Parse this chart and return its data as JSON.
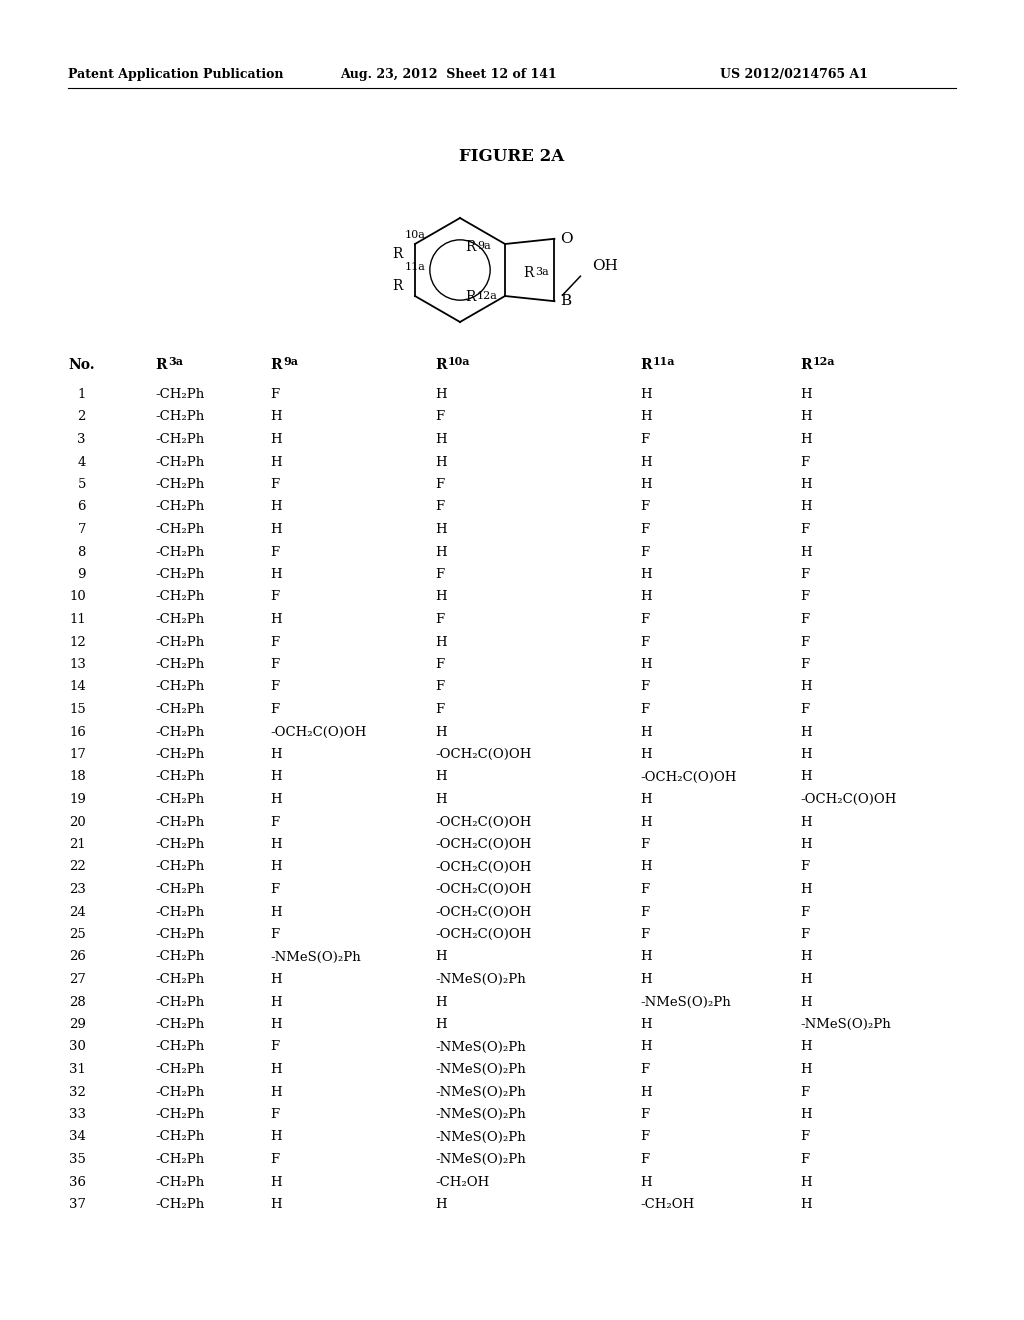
{
  "header_left": "Patent Application Publication",
  "header_mid": "Aug. 23, 2012  Sheet 12 of 141",
  "header_right": "US 2012/0214765 A1",
  "figure_title": "FIGURE 2A",
  "rows": [
    [
      "1",
      "-CH₂Ph",
      "F",
      "H",
      "H",
      "H"
    ],
    [
      "2",
      "-CH₂Ph",
      "H",
      "F",
      "H",
      "H"
    ],
    [
      "3",
      "-CH₂Ph",
      "H",
      "H",
      "F",
      "H"
    ],
    [
      "4",
      "-CH₂Ph",
      "H",
      "H",
      "H",
      "F"
    ],
    [
      "5",
      "-CH₂Ph",
      "F",
      "F",
      "H",
      "H"
    ],
    [
      "6",
      "-CH₂Ph",
      "H",
      "F",
      "F",
      "H"
    ],
    [
      "7",
      "-CH₂Ph",
      "H",
      "H",
      "F",
      "F"
    ],
    [
      "8",
      "-CH₂Ph",
      "F",
      "H",
      "F",
      "H"
    ],
    [
      "9",
      "-CH₂Ph",
      "H",
      "F",
      "H",
      "F"
    ],
    [
      "10",
      "-CH₂Ph",
      "F",
      "H",
      "H",
      "F"
    ],
    [
      "11",
      "-CH₂Ph",
      "H",
      "F",
      "F",
      "F"
    ],
    [
      "12",
      "-CH₂Ph",
      "F",
      "H",
      "F",
      "F"
    ],
    [
      "13",
      "-CH₂Ph",
      "F",
      "F",
      "H",
      "F"
    ],
    [
      "14",
      "-CH₂Ph",
      "F",
      "F",
      "F",
      "H"
    ],
    [
      "15",
      "-CH₂Ph",
      "F",
      "F",
      "F",
      "F"
    ],
    [
      "16",
      "-CH₂Ph",
      "-OCH₂C(O)OH",
      "H",
      "H",
      "H"
    ],
    [
      "17",
      "-CH₂Ph",
      "H",
      "-OCH₂C(O)OH",
      "H",
      "H"
    ],
    [
      "18",
      "-CH₂Ph",
      "H",
      "H",
      "-OCH₂C(O)OH",
      "H"
    ],
    [
      "19",
      "-CH₂Ph",
      "H",
      "H",
      "H",
      "-OCH₂C(O)OH"
    ],
    [
      "20",
      "-CH₂Ph",
      "F",
      "-OCH₂C(O)OH",
      "H",
      "H"
    ],
    [
      "21",
      "-CH₂Ph",
      "H",
      "-OCH₂C(O)OH",
      "F",
      "H"
    ],
    [
      "22",
      "-CH₂Ph",
      "H",
      "-OCH₂C(O)OH",
      "H",
      "F"
    ],
    [
      "23",
      "-CH₂Ph",
      "F",
      "-OCH₂C(O)OH",
      "F",
      "H"
    ],
    [
      "24",
      "-CH₂Ph",
      "H",
      "-OCH₂C(O)OH",
      "F",
      "F"
    ],
    [
      "25",
      "-CH₂Ph",
      "F",
      "-OCH₂C(O)OH",
      "F",
      "F"
    ],
    [
      "26",
      "-CH₂Ph",
      "-NMeS(O)₂Ph",
      "H",
      "H",
      "H"
    ],
    [
      "27",
      "-CH₂Ph",
      "H",
      "-NMeS(O)₂Ph",
      "H",
      "H"
    ],
    [
      "28",
      "-CH₂Ph",
      "H",
      "H",
      "-NMeS(O)₂Ph",
      "H"
    ],
    [
      "29",
      "-CH₂Ph",
      "H",
      "H",
      "H",
      "-NMeS(O)₂Ph"
    ],
    [
      "30",
      "-CH₂Ph",
      "F",
      "-NMeS(O)₂Ph",
      "H",
      "H"
    ],
    [
      "31",
      "-CH₂Ph",
      "H",
      "-NMeS(O)₂Ph",
      "F",
      "H"
    ],
    [
      "32",
      "-CH₂Ph",
      "H",
      "-NMeS(O)₂Ph",
      "H",
      "F"
    ],
    [
      "33",
      "-CH₂Ph",
      "F",
      "-NMeS(O)₂Ph",
      "F",
      "H"
    ],
    [
      "34",
      "-CH₂Ph",
      "H",
      "-NMeS(O)₂Ph",
      "F",
      "F"
    ],
    [
      "35",
      "-CH₂Ph",
      "F",
      "-NMeS(O)₂Ph",
      "F",
      "F"
    ],
    [
      "36",
      "-CH₂Ph",
      "H",
      "-CH₂OH",
      "H",
      "H"
    ],
    [
      "37",
      "-CH₂Ph",
      "H",
      "H",
      "-CH₂OH",
      "H"
    ]
  ],
  "bg_color": "#ffffff",
  "text_color": "#000000"
}
